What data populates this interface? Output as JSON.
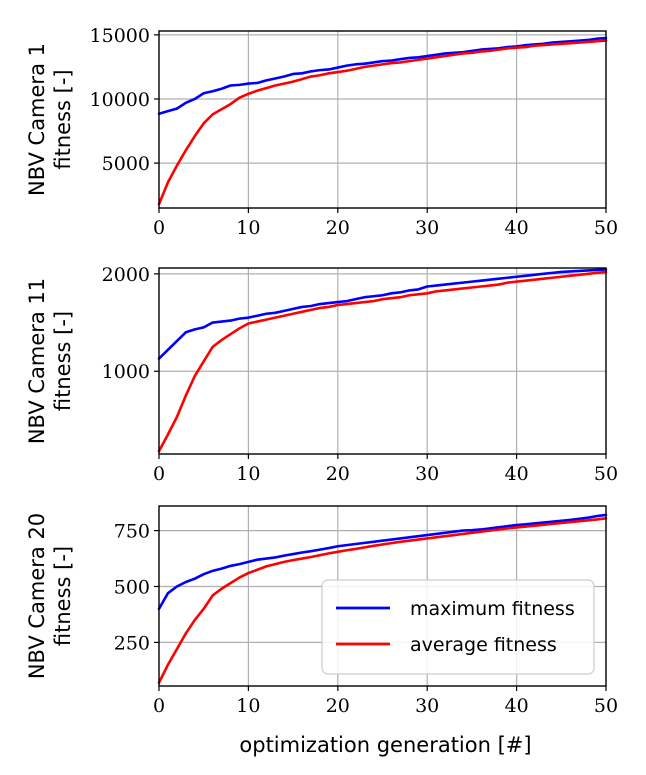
{
  "figure": {
    "xlabel": "optimization generation [#]"
  },
  "legend": {
    "placement": "lower-right",
    "entries": [
      {
        "label": "maximum fitness",
        "color": "#0000ff"
      },
      {
        "label": "average fitness",
        "color": "#ff0000"
      }
    ]
  },
  "chart_data": [
    {
      "type": "line",
      "ylabel_lines": [
        "NBV Camera 1",
        "fitness [-]"
      ],
      "xlim": [
        0,
        50
      ],
      "ylim": [
        1500,
        15300
      ],
      "xticks": [
        0,
        10,
        20,
        30,
        40,
        50
      ],
      "yticks": [
        5000,
        10000,
        15000
      ],
      "grid": true,
      "series": [
        {
          "name": "maximum fitness",
          "color": "#0000ff",
          "x": [
            0,
            1,
            2,
            3,
            4,
            5,
            6,
            7,
            8,
            9,
            10,
            11,
            12,
            13,
            14,
            15,
            16,
            17,
            18,
            19,
            20,
            21,
            22,
            23,
            24,
            25,
            26,
            27,
            28,
            29,
            30,
            31,
            32,
            33,
            34,
            35,
            36,
            37,
            38,
            39,
            40,
            41,
            42,
            43,
            44,
            45,
            46,
            47,
            48,
            49,
            50
          ],
          "y": [
            8850,
            9050,
            9250,
            9700,
            10000,
            10450,
            10600,
            10800,
            11050,
            11100,
            11200,
            11250,
            11450,
            11600,
            11750,
            11950,
            12000,
            12150,
            12250,
            12300,
            12450,
            12600,
            12700,
            12750,
            12850,
            12950,
            13000,
            13100,
            13200,
            13250,
            13350,
            13450,
            13550,
            13600,
            13650,
            13750,
            13850,
            13900,
            13950,
            14050,
            14100,
            14200,
            14250,
            14300,
            14400,
            14450,
            14500,
            14550,
            14600,
            14700,
            14750
          ]
        },
        {
          "name": "average fitness",
          "color": "#ff0000",
          "x": [
            0,
            1,
            2,
            3,
            4,
            5,
            6,
            7,
            8,
            9,
            10,
            11,
            12,
            13,
            14,
            15,
            16,
            17,
            18,
            19,
            20,
            21,
            22,
            23,
            24,
            25,
            26,
            27,
            28,
            29,
            30,
            31,
            32,
            33,
            34,
            35,
            36,
            37,
            38,
            39,
            40,
            41,
            42,
            43,
            44,
            45,
            46,
            47,
            48,
            49,
            50
          ],
          "y": [
            1800,
            3500,
            4800,
            6000,
            7100,
            8100,
            8800,
            9200,
            9600,
            10100,
            10400,
            10650,
            10850,
            11050,
            11200,
            11350,
            11550,
            11750,
            11850,
            12000,
            12100,
            12200,
            12350,
            12500,
            12600,
            12700,
            12800,
            12850,
            12950,
            13050,
            13150,
            13250,
            13350,
            13450,
            13550,
            13600,
            13700,
            13750,
            13850,
            13950,
            14000,
            14050,
            14150,
            14200,
            14250,
            14300,
            14350,
            14400,
            14450,
            14500,
            14550
          ]
        }
      ]
    },
    {
      "type": "line",
      "ylabel_lines": [
        "NBV Camera 11",
        "fitness [-]"
      ],
      "xlim": [
        0,
        50
      ],
      "ylim": [
        150,
        2060
      ],
      "xticks": [
        0,
        10,
        20,
        30,
        40,
        50
      ],
      "yticks": [
        1000,
        2000
      ],
      "grid": true,
      "series": [
        {
          "name": "maximum fitness",
          "color": "#0000ff",
          "x": [
            0,
            1,
            2,
            3,
            4,
            5,
            6,
            7,
            8,
            9,
            10,
            11,
            12,
            13,
            14,
            15,
            16,
            17,
            18,
            19,
            20,
            21,
            22,
            23,
            24,
            25,
            26,
            27,
            28,
            29,
            30,
            31,
            32,
            33,
            34,
            35,
            36,
            37,
            38,
            39,
            40,
            41,
            42,
            43,
            44,
            45,
            46,
            47,
            48,
            49,
            50
          ],
          "y": [
            1130,
            1220,
            1310,
            1400,
            1430,
            1450,
            1500,
            1510,
            1520,
            1540,
            1550,
            1570,
            1590,
            1600,
            1620,
            1640,
            1660,
            1670,
            1690,
            1700,
            1710,
            1720,
            1740,
            1760,
            1770,
            1780,
            1800,
            1810,
            1830,
            1840,
            1870,
            1880,
            1890,
            1900,
            1910,
            1920,
            1930,
            1940,
            1950,
            1960,
            1970,
            1980,
            1990,
            2000,
            2010,
            2020,
            2025,
            2030,
            2035,
            2040,
            2045
          ]
        },
        {
          "name": "average fitness",
          "color": "#ff0000",
          "x": [
            0,
            1,
            2,
            3,
            4,
            5,
            6,
            7,
            8,
            9,
            10,
            11,
            12,
            13,
            14,
            15,
            16,
            17,
            18,
            19,
            20,
            21,
            22,
            23,
            24,
            25,
            26,
            27,
            28,
            29,
            30,
            31,
            32,
            33,
            34,
            35,
            36,
            37,
            38,
            39,
            40,
            41,
            42,
            43,
            44,
            45,
            46,
            47,
            48,
            49,
            50
          ],
          "y": [
            180,
            350,
            530,
            750,
            950,
            1100,
            1250,
            1320,
            1380,
            1440,
            1490,
            1510,
            1530,
            1550,
            1570,
            1590,
            1610,
            1630,
            1650,
            1660,
            1680,
            1690,
            1700,
            1710,
            1720,
            1740,
            1750,
            1760,
            1780,
            1790,
            1800,
            1820,
            1830,
            1840,
            1850,
            1860,
            1870,
            1880,
            1890,
            1910,
            1920,
            1930,
            1940,
            1950,
            1960,
            1970,
            1980,
            1990,
            2000,
            2010,
            2020
          ]
        }
      ]
    },
    {
      "type": "line",
      "ylabel_lines": [
        "NBV Camera 20",
        "fitness [-]"
      ],
      "xlim": [
        0,
        50
      ],
      "ylim": [
        55,
        860
      ],
      "xticks": [
        0,
        10,
        20,
        30,
        40,
        50
      ],
      "yticks": [
        250,
        500,
        750
      ],
      "grid": true,
      "series": [
        {
          "name": "maximum fitness",
          "color": "#0000ff",
          "x": [
            0,
            1,
            2,
            3,
            4,
            5,
            6,
            7,
            8,
            9,
            10,
            11,
            12,
            13,
            14,
            15,
            16,
            17,
            18,
            19,
            20,
            21,
            22,
            23,
            24,
            25,
            26,
            27,
            28,
            29,
            30,
            31,
            32,
            33,
            34,
            35,
            36,
            37,
            38,
            39,
            40,
            41,
            42,
            43,
            44,
            45,
            46,
            47,
            48,
            49,
            50
          ],
          "y": [
            400,
            470,
            500,
            520,
            535,
            555,
            570,
            580,
            592,
            600,
            610,
            620,
            625,
            630,
            638,
            645,
            652,
            658,
            665,
            672,
            680,
            685,
            690,
            695,
            700,
            705,
            710,
            715,
            720,
            725,
            730,
            735,
            740,
            745,
            750,
            752,
            755,
            760,
            765,
            770,
            775,
            778,
            782,
            786,
            790,
            794,
            798,
            803,
            808,
            815,
            820
          ]
        },
        {
          "name": "average fitness",
          "color": "#ff0000",
          "x": [
            0,
            1,
            2,
            3,
            4,
            5,
            6,
            7,
            8,
            9,
            10,
            11,
            12,
            13,
            14,
            15,
            16,
            17,
            18,
            19,
            20,
            21,
            22,
            23,
            24,
            25,
            26,
            27,
            28,
            29,
            30,
            31,
            32,
            33,
            34,
            35,
            36,
            37,
            38,
            39,
            40,
            41,
            42,
            43,
            44,
            45,
            46,
            47,
            48,
            49,
            50
          ],
          "y": [
            70,
            150,
            220,
            290,
            350,
            400,
            460,
            490,
            515,
            540,
            560,
            575,
            590,
            600,
            610,
            618,
            625,
            632,
            640,
            648,
            655,
            662,
            668,
            675,
            682,
            688,
            694,
            700,
            705,
            710,
            715,
            720,
            725,
            730,
            735,
            740,
            745,
            750,
            755,
            760,
            764,
            768,
            772,
            776,
            780,
            784,
            788,
            792,
            796,
            800,
            805
          ]
        }
      ]
    }
  ]
}
